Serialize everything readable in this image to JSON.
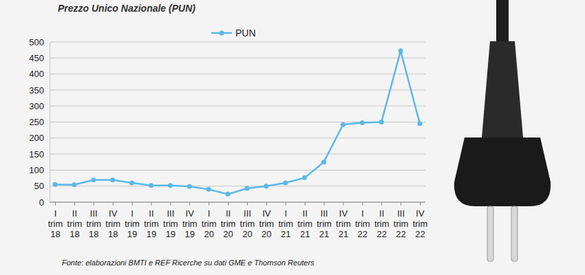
{
  "chart_data": {
    "type": "line",
    "title": "Prezzo Unico Nazionale (PUN)",
    "source": "Fonte: elaborazioni BMTI e REF Ricerche su dati GME e Thomson Reuters",
    "categories": [
      "I trim 18",
      "II trim 18",
      "III trim 18",
      "IV trim 18",
      "I trim 19",
      "II trim 19",
      "III trim 19",
      "IV trim 19",
      "I trim 20",
      "II trim 20",
      "III trim 20",
      "IV trim 20",
      "I trim 21",
      "II trim 21",
      "III trim 21",
      "IV trim 21",
      "I trim 22",
      "II trim 22",
      "III trim 22",
      "IV trim 22"
    ],
    "series": [
      {
        "name": "PUN",
        "color": "#5bb8e8",
        "marker": "circle",
        "values": [
          55,
          54,
          69,
          69,
          60,
          52,
          52,
          49,
          40,
          25,
          43,
          50,
          60,
          76,
          125,
          242,
          248,
          250,
          472,
          245
        ]
      }
    ],
    "ylim": [
      0,
      500
    ],
    "yticks": [
      0,
      50,
      100,
      150,
      200,
      250,
      300,
      350,
      400,
      450,
      500
    ],
    "grid": true,
    "legend": "top"
  }
}
